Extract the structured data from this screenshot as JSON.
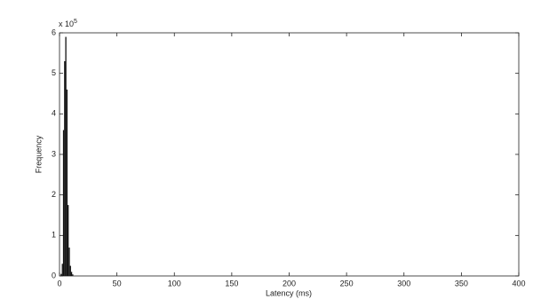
{
  "chart_data": {
    "type": "histogram",
    "xlabel": "Latency (ms)",
    "ylabel": "Frequency",
    "y_multiplier": {
      "base": "x 10",
      "exponent": "5"
    },
    "bins": [
      1,
      2,
      3,
      4,
      5,
      6,
      7,
      8,
      9,
      10,
      11,
      12
    ],
    "values": [
      5000,
      30000,
      360000,
      530000,
      590000,
      460000,
      175000,
      70000,
      25000,
      10000,
      4000
    ],
    "color": "#111111",
    "xlim": [
      0,
      400
    ],
    "xticks": [
      0,
      50,
      100,
      150,
      200,
      250,
      300,
      350,
      400
    ],
    "ylim": [
      0,
      600000
    ],
    "yticks": [
      {
        "value": 0,
        "label": "0"
      },
      {
        "value": 100000,
        "label": "1"
      },
      {
        "value": 200000,
        "label": "2"
      },
      {
        "value": 300000,
        "label": "3"
      },
      {
        "value": 400000,
        "label": "4"
      },
      {
        "value": 500000,
        "label": "5"
      },
      {
        "value": 600000,
        "label": "6"
      }
    ],
    "grid": false
  }
}
